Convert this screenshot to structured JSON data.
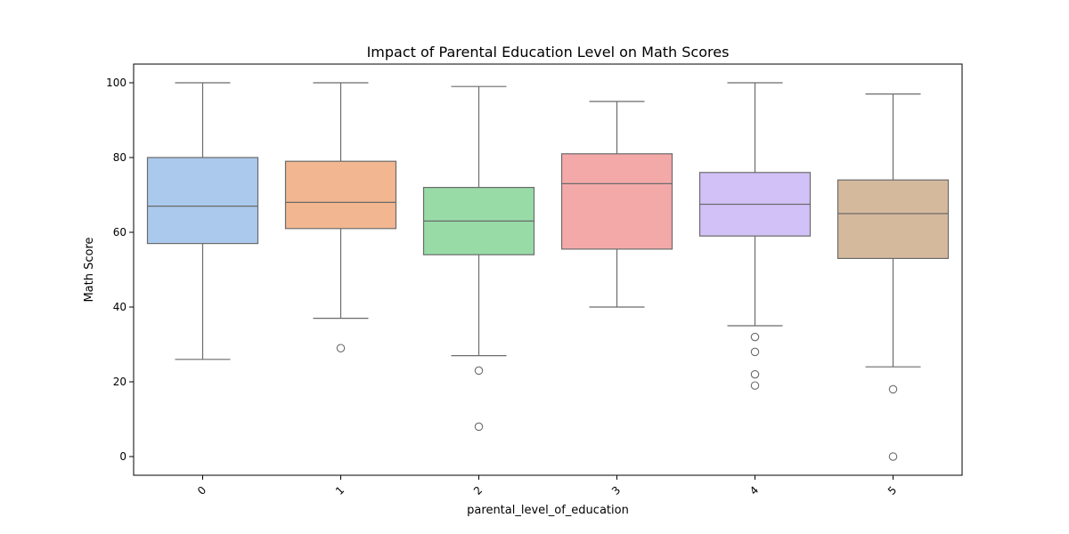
{
  "chart_data": {
    "type": "box",
    "title": "Impact of Parental Education Level on Math Scores",
    "xlabel": "parental_level_of_education",
    "ylabel": "Math Score",
    "ylim": [
      -5,
      105
    ],
    "yticks": [
      0,
      20,
      40,
      60,
      80,
      100
    ],
    "grid": false,
    "legend": "none",
    "categories": [
      "0",
      "1",
      "2",
      "3",
      "4",
      "5"
    ],
    "boxes": [
      {
        "category": "0",
        "whisker_low": 26,
        "q1": 57,
        "median": 67,
        "q3": 80,
        "whisker_high": 100,
        "outliers": [],
        "color": "#abc9ed"
      },
      {
        "category": "1",
        "whisker_low": 37,
        "q1": 61,
        "median": 68,
        "q3": 79,
        "whisker_high": 100,
        "outliers": [
          29
        ],
        "color": "#f2b690"
      },
      {
        "category": "2",
        "whisker_low": 27,
        "q1": 54,
        "median": 63,
        "q3": 72,
        "whisker_high": 99,
        "outliers": [
          23,
          8
        ],
        "color": "#98dba7"
      },
      {
        "category": "3",
        "whisker_low": 40,
        "q1": 55.5,
        "median": 73,
        "q3": 81,
        "whisker_high": 95,
        "outliers": [],
        "color": "#f3a9a8"
      },
      {
        "category": "4",
        "whisker_low": 35,
        "q1": 59,
        "median": 67.5,
        "q3": 76,
        "whisker_high": 100,
        "outliers": [
          32,
          28,
          22,
          19
        ],
        "color": "#d1c1f7"
      },
      {
        "category": "5",
        "whisker_low": 24,
        "q1": 53,
        "median": 65,
        "q3": 74,
        "whisker_high": 97,
        "outliers": [
          18,
          0
        ],
        "color": "#d5b99d"
      }
    ],
    "line_color": "#6b6b6b"
  }
}
